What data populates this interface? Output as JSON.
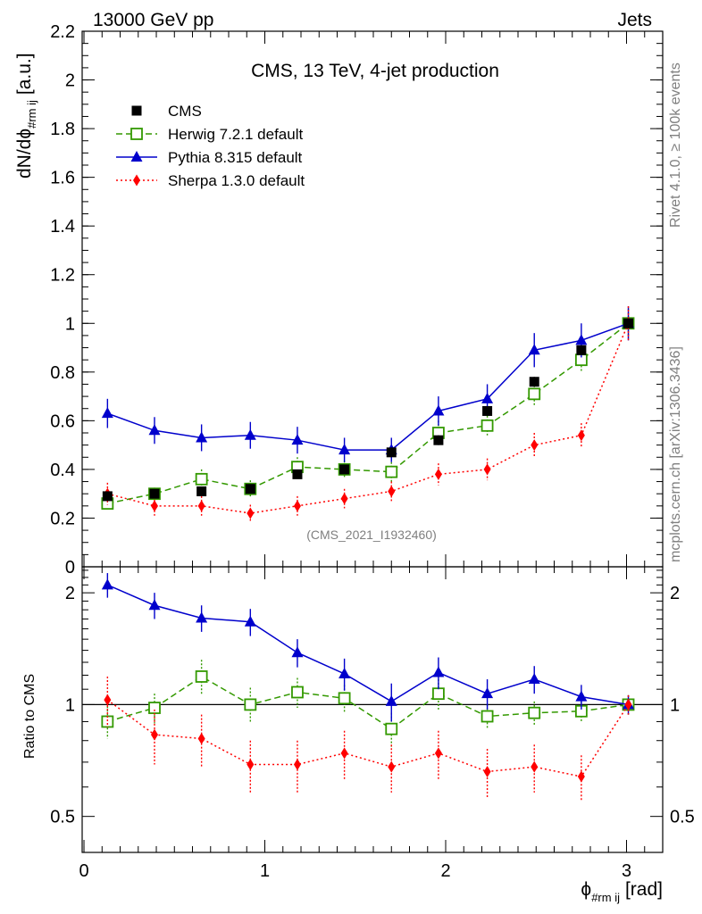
{
  "header": {
    "left": "13000 GeV pp",
    "right": "Jets"
  },
  "side_labels": {
    "rivet": "Rivet 4.1.0, ≥ 100k events",
    "mcplots": "mcplots.cern.ch [arXiv:1306.3436]"
  },
  "chart_data": [
    {
      "type": "scatter",
      "panel": "main",
      "title": "CMS, 13 TeV, 4-jet production",
      "watermark": "(CMS_2021_I1932460)",
      "ylabel": "dN/dϕ",
      "ylabel_sub": "#rm ij",
      "ylabel_unit": "[a.u.]",
      "ylim": [
        0,
        2.2
      ],
      "xlim": [
        -0.01,
        3.2
      ],
      "yticks": [
        "0",
        "0.2",
        "0.4",
        "0.6",
        "0.8",
        "1",
        "1.2",
        "1.4",
        "1.6",
        "1.8",
        "2",
        "2.2"
      ],
      "x": [
        0.13,
        0.39,
        0.65,
        0.92,
        1.18,
        1.44,
        1.7,
        1.96,
        2.23,
        2.49,
        2.75,
        3.01
      ],
      "series": [
        {
          "name": "CMS",
          "color": "#000000",
          "marker": "square-filled",
          "line": "none",
          "values": [
            0.29,
            0.3,
            0.31,
            0.32,
            0.38,
            0.4,
            0.47,
            0.52,
            0.64,
            0.76,
            0.89,
            1.0
          ],
          "err": [
            0.015,
            0.015,
            0.015,
            0.015,
            0.015,
            0.015,
            0.02,
            0.02,
            0.02,
            0.02,
            0.02,
            0.02
          ]
        },
        {
          "name": "Herwig 7.2.1 default",
          "color": "#339900",
          "marker": "square-open",
          "line": "dashed",
          "values": [
            0.26,
            0.3,
            0.36,
            0.32,
            0.41,
            0.4,
            0.39,
            0.55,
            0.58,
            0.71,
            0.85,
            1.0
          ],
          "err": [
            0.025,
            0.025,
            0.04,
            0.035,
            0.04,
            0.035,
            0.04,
            0.05,
            0.04,
            0.05,
            0.05,
            0.06
          ]
        },
        {
          "name": "Pythia 8.315 default",
          "color": "#0000cc",
          "marker": "triangle",
          "line": "solid",
          "values": [
            0.63,
            0.56,
            0.53,
            0.54,
            0.52,
            0.48,
            0.48,
            0.64,
            0.69,
            0.89,
            0.93,
            1.0
          ],
          "err": [
            0.06,
            0.055,
            0.055,
            0.055,
            0.055,
            0.05,
            0.05,
            0.06,
            0.06,
            0.07,
            0.07,
            0.07
          ]
        },
        {
          "name": "Sherpa 1.3.0 default",
          "color": "#ff0000",
          "marker": "diamond",
          "line": "dotted",
          "values": [
            0.3,
            0.25,
            0.25,
            0.22,
            0.25,
            0.28,
            0.31,
            0.38,
            0.4,
            0.5,
            0.54,
            1.0
          ],
          "err": [
            0.045,
            0.04,
            0.04,
            0.035,
            0.04,
            0.04,
            0.04,
            0.045,
            0.045,
            0.05,
            0.05,
            0.07
          ]
        }
      ]
    },
    {
      "type": "scatter",
      "panel": "ratio",
      "ylabel": "Ratio to CMS",
      "yscale": "log",
      "ylim": [
        0.4,
        2.35
      ],
      "yticks": [
        "0.5",
        "1",
        "2"
      ],
      "xlabel": "ϕ",
      "xlabel_sub": "#rm ij",
      "xlabel_unit": "[rad]",
      "xticks": [
        "0",
        "1",
        "2",
        "3"
      ],
      "reference_line": 1,
      "x": [
        0.13,
        0.39,
        0.65,
        0.92,
        1.18,
        1.44,
        1.7,
        1.96,
        2.23,
        2.49,
        2.75,
        3.01
      ],
      "series": [
        {
          "name": "Herwig 7.2.1 default",
          "color": "#339900",
          "marker": "square-open",
          "line": "dashed",
          "values": [
            0.9,
            0.98,
            1.19,
            1.0,
            1.08,
            1.04,
            0.86,
            1.07,
            0.93,
            0.95,
            0.96,
            1.0
          ],
          "err": [
            0.09,
            0.09,
            0.13,
            0.11,
            0.1,
            0.09,
            0.09,
            0.1,
            0.07,
            0.07,
            0.06,
            0.06
          ]
        },
        {
          "name": "Pythia 8.315 default",
          "color": "#0000cc",
          "marker": "triangle",
          "line": "solid",
          "values": [
            2.1,
            1.85,
            1.71,
            1.67,
            1.38,
            1.21,
            1.02,
            1.22,
            1.07,
            1.17,
            1.05,
            1.0
          ],
          "err": [
            0.16,
            0.15,
            0.14,
            0.14,
            0.12,
            0.12,
            0.12,
            0.12,
            0.1,
            0.1,
            0.08,
            0.06
          ]
        },
        {
          "name": "Sherpa 1.3.0 default",
          "color": "#ff0000",
          "marker": "diamond",
          "line": "dotted",
          "values": [
            1.03,
            0.83,
            0.81,
            0.69,
            0.69,
            0.74,
            0.68,
            0.74,
            0.66,
            0.68,
            0.64,
            1.0
          ],
          "err": [
            0.16,
            0.14,
            0.13,
            0.11,
            0.11,
            0.11,
            0.1,
            0.11,
            0.1,
            0.1,
            0.09,
            0.06
          ]
        }
      ]
    }
  ]
}
